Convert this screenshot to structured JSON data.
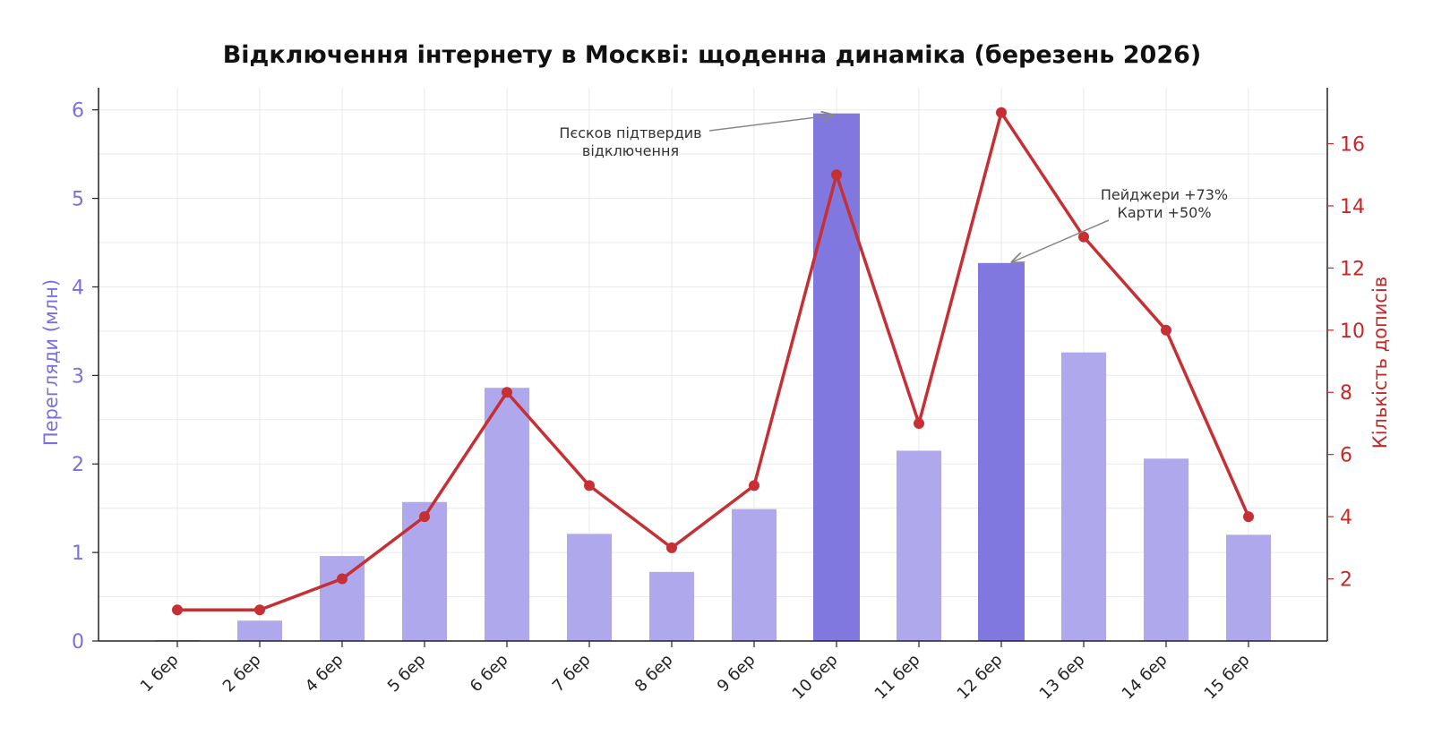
{
  "chart_data": {
    "type": "bar",
    "title": "Відключення інтернету в Москві: щоденна динаміка (березень 2026)",
    "categories": [
      "1 бер",
      "2 бер",
      "4 бер",
      "5 бер",
      "6 бер",
      "7 бер",
      "8 бер",
      "9 бер",
      "10 бер",
      "11 бер",
      "12 бер",
      "13 бер",
      "14 бер",
      "15 бер"
    ],
    "ylabel_left": "Перегляди (млн)",
    "ylabel_right": "Кількість дописів",
    "ylim_left": [
      0,
      6.25
    ],
    "yticks_left": [
      0,
      1,
      2,
      3,
      4,
      5,
      6
    ],
    "ylim_right": [
      0,
      17.8
    ],
    "yticks_right": [
      2,
      4,
      6,
      8,
      10,
      12,
      14,
      16
    ],
    "grid": true,
    "series": [
      {
        "axis": "left",
        "type": "bar",
        "values": [
          0.01,
          0.23,
          0.96,
          1.57,
          2.86,
          1.21,
          0.78,
          1.49,
          5.96,
          2.15,
          4.27,
          3.26,
          2.06,
          1.2
        ],
        "highlight": [
          false,
          false,
          false,
          false,
          false,
          false,
          false,
          false,
          true,
          false,
          true,
          false,
          false,
          false
        ],
        "color": "#b0a8ec",
        "highlight_color": "#8078de"
      },
      {
        "axis": "right",
        "type": "line",
        "values": [
          1,
          1,
          2,
          4,
          8,
          5,
          3,
          5,
          15,
          7,
          17,
          13,
          10,
          4
        ],
        "color": "#c62f33"
      }
    ],
    "annotations": [
      {
        "lines": [
          "Пєсков підтвердив",
          "відключення"
        ],
        "target_category": "10 бер"
      },
      {
        "lines": [
          "Пейджери +73%",
          "Карти +50%"
        ],
        "target_category": "12 бер"
      }
    ]
  }
}
